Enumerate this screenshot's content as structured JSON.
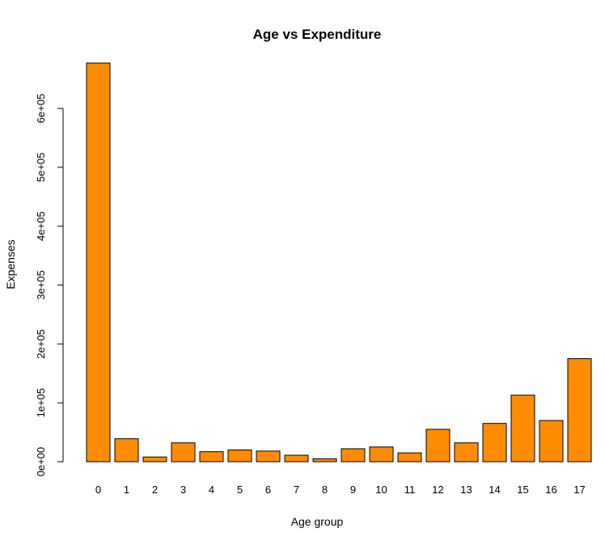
{
  "chart_data": {
    "type": "bar",
    "title": "Age vs Expenditure",
    "xlabel": "Age group",
    "ylabel": "Expenses",
    "categories": [
      "0",
      "1",
      "2",
      "3",
      "4",
      "5",
      "6",
      "7",
      "8",
      "9",
      "10",
      "11",
      "12",
      "13",
      "14",
      "15",
      "16",
      "17"
    ],
    "values": [
      677000,
      39000,
      8000,
      32000,
      17000,
      20000,
      18000,
      11000,
      5000,
      22000,
      25000,
      15000,
      55000,
      32000,
      65000,
      113000,
      70000,
      175000
    ],
    "ylim": [
      0,
      677000
    ],
    "yticks": [
      0,
      100000,
      200000,
      300000,
      400000,
      500000,
      600000
    ],
    "ytick_labels": [
      "0e+00",
      "1e+05",
      "2e+05",
      "3e+05",
      "4e+05",
      "5e+05",
      "6e+05"
    ],
    "bar_color": "#FF8C00",
    "grid": false,
    "legend": "none"
  }
}
